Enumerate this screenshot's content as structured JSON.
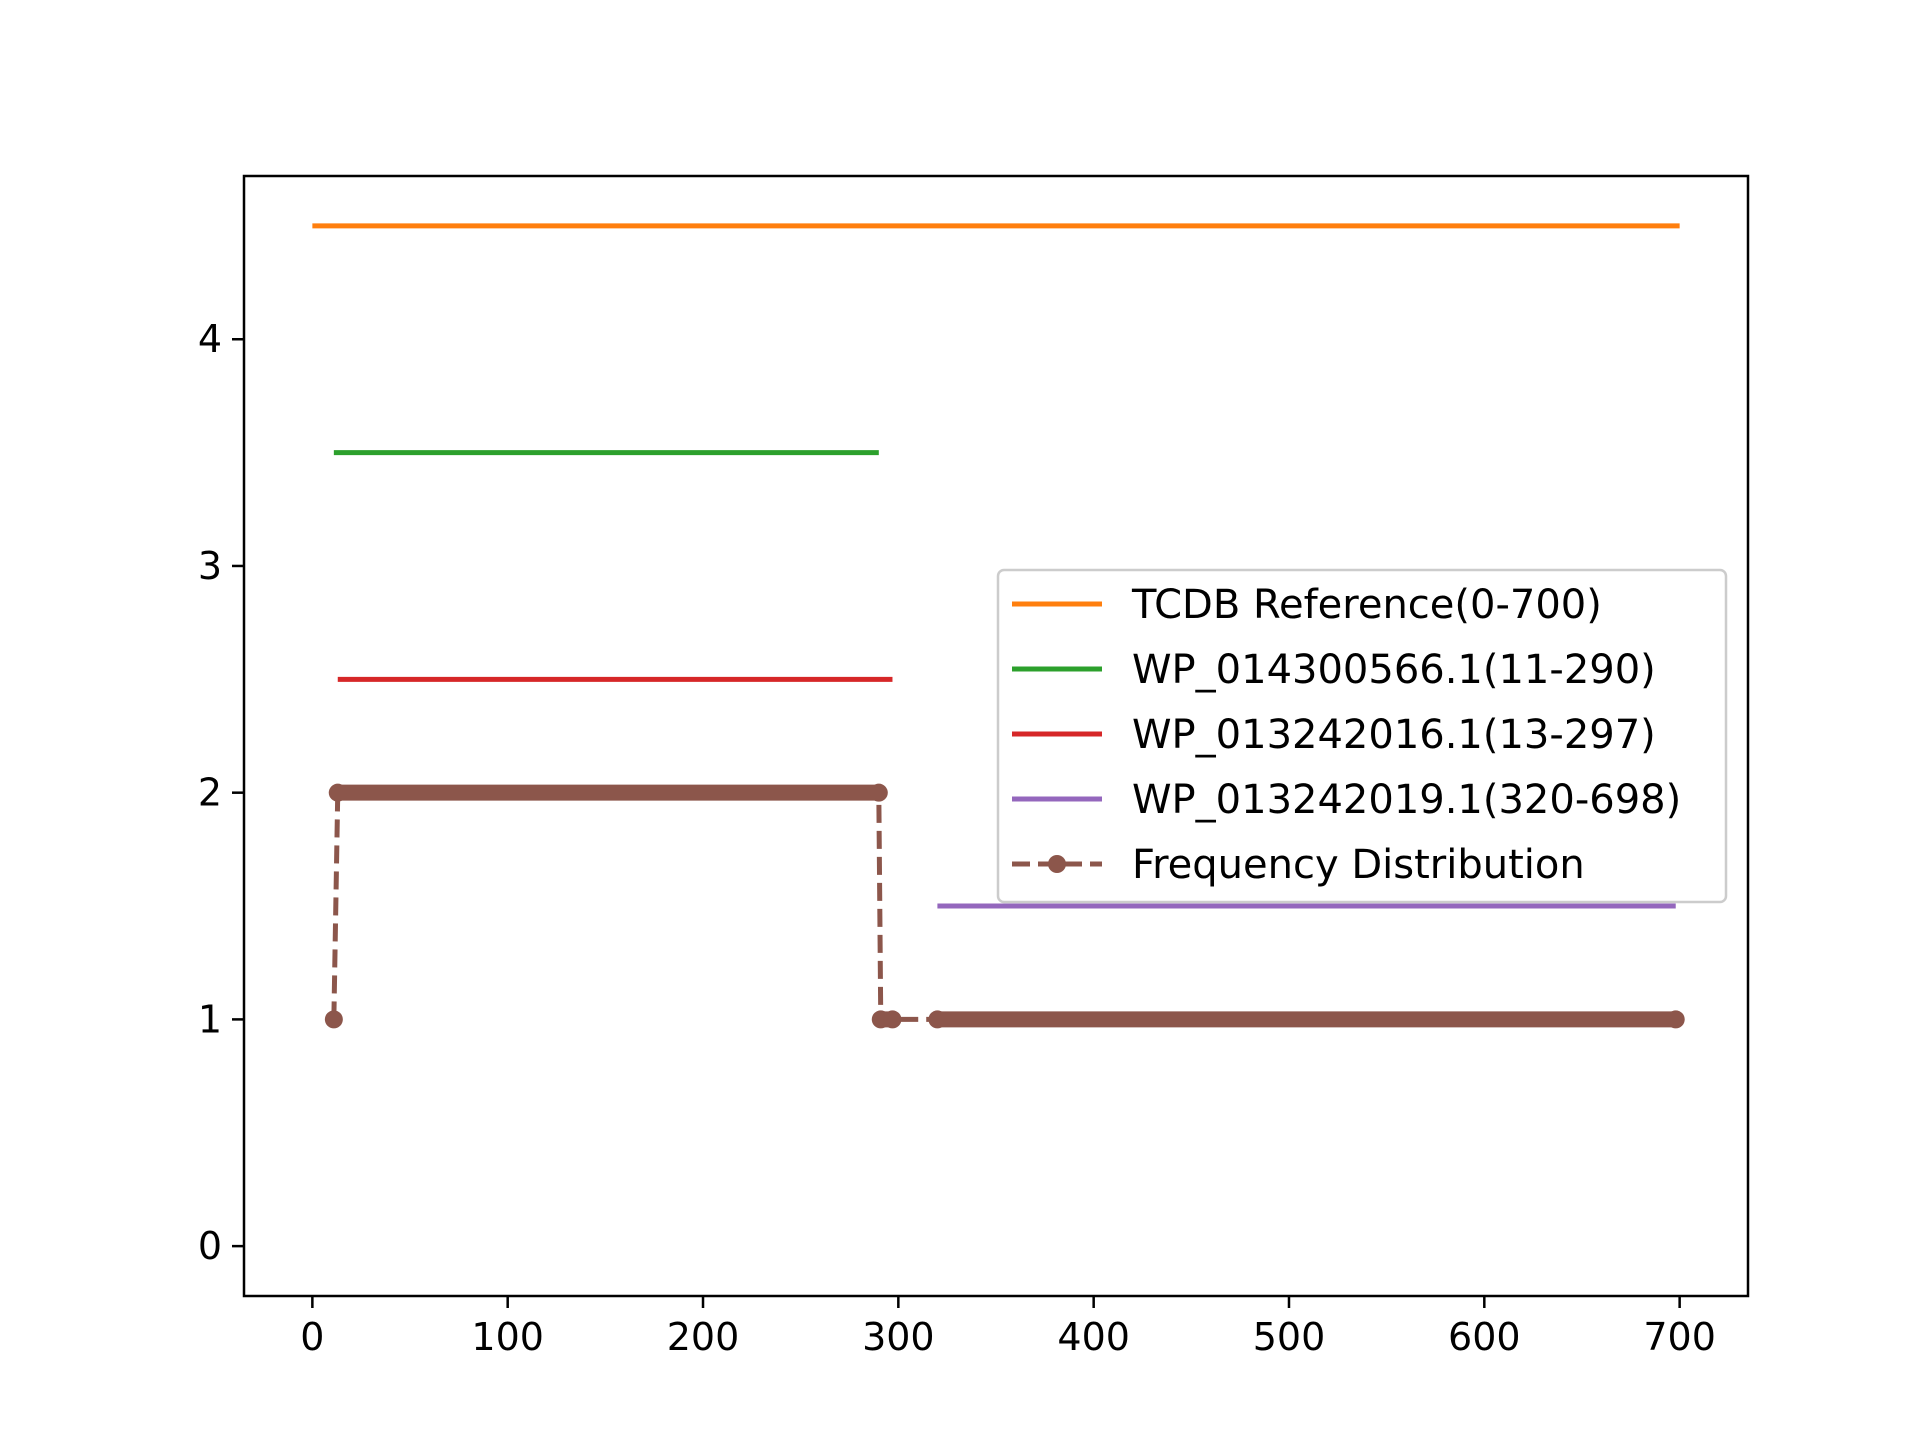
{
  "chart_data": {
    "type": "line",
    "title": "",
    "xlabel": "",
    "ylabel": "",
    "xlim": [
      -35,
      735
    ],
    "ylim": [
      -0.22,
      4.72
    ],
    "xticks": [
      0,
      100,
      200,
      300,
      400,
      500,
      600,
      700
    ],
    "yticks": [
      0,
      1,
      2,
      3,
      4
    ],
    "grid": false,
    "legend_position": "center-right",
    "series": [
      {
        "name": "TCDB Reference(0-700)",
        "color": "#ff7f0e",
        "style": "solid",
        "segments": [
          [
            [
              0,
              4.5
            ],
            [
              700,
              4.5
            ]
          ]
        ]
      },
      {
        "name": "WP_014300566.1(11-290)",
        "color": "#2ca02c",
        "style": "solid",
        "segments": [
          [
            [
              11,
              3.5
            ],
            [
              290,
              3.5
            ]
          ]
        ]
      },
      {
        "name": "WP_013242016.1(13-297)",
        "color": "#d62728",
        "style": "solid",
        "segments": [
          [
            [
              13,
              2.5
            ],
            [
              297,
              2.5
            ]
          ]
        ]
      },
      {
        "name": "WP_013242019.1(320-698)",
        "color": "#9467bd",
        "style": "solid",
        "segments": [
          [
            [
              320,
              1.5
            ],
            [
              698,
              1.5
            ]
          ]
        ]
      },
      {
        "name": "Frequency Distribution",
        "color": "#8c564b",
        "style": "dashed-markers",
        "points": [
          [
            11,
            1
          ],
          [
            13,
            2
          ],
          [
            290,
            2
          ],
          [
            291,
            1
          ],
          [
            297,
            1
          ],
          [
            320,
            1
          ],
          [
            698,
            1
          ]
        ],
        "dense_runs": [
          [
            13,
            290,
            2
          ],
          [
            291,
            297,
            1
          ],
          [
            320,
            698,
            1
          ]
        ]
      }
    ]
  }
}
